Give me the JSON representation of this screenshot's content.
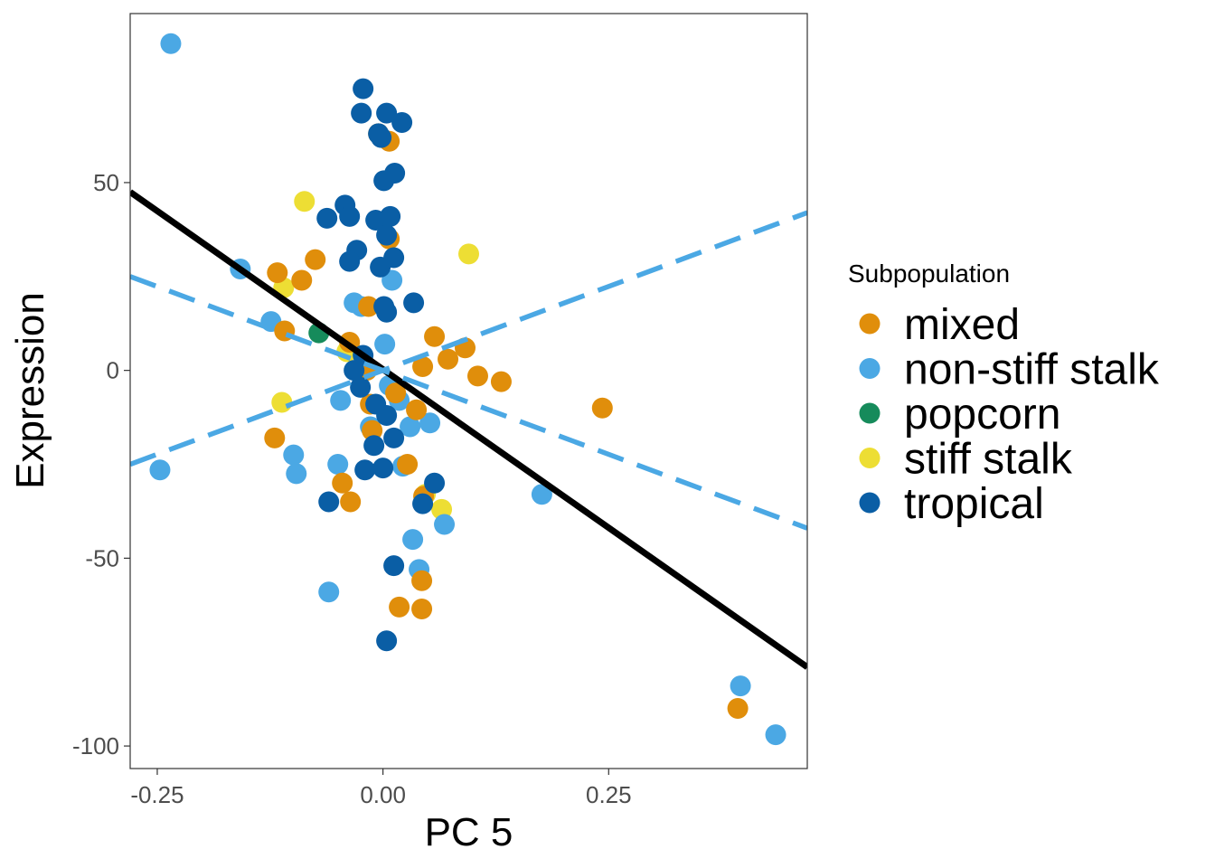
{
  "chart_data": {
    "type": "scatter",
    "xlabel": "PC 5",
    "ylabel": "Expression",
    "xlim": [
      -0.28,
      0.47
    ],
    "ylim": [
      -106,
      95
    ],
    "x_ticks": [
      -0.25,
      0.0,
      0.25
    ],
    "x_tick_labels": [
      "-0.25",
      "0.00",
      "0.25"
    ],
    "y_ticks": [
      -100,
      -50,
      0,
      50
    ],
    "y_tick_labels": [
      "-100",
      "-50",
      "0",
      "50"
    ],
    "grid": false,
    "legend": {
      "title": "Subpopulation",
      "position": "right",
      "entries": [
        "mixed",
        "non-stiff stalk",
        "popcorn",
        "stiff stalk",
        "tropical"
      ]
    },
    "colors": {
      "mixed": "#E08E0B",
      "non-stiff stalk": "#4BA8E4",
      "popcorn": "#168B5B",
      "stiff stalk": "#EDDE34",
      "tropical": "#0A5EA5",
      "overall_fit": "#000000"
    },
    "fit_lines": [
      {
        "name": "overall",
        "style": "solid",
        "color": "#000000",
        "points": [
          [
            -0.28,
            47.5
          ],
          [
            0.47,
            -79
          ]
        ]
      },
      {
        "name": "non-stiff stalk (upper)",
        "style": "dashed",
        "color": "#4BA8E4",
        "points": [
          [
            -0.28,
            -25
          ],
          [
            0.47,
            42
          ]
        ]
      },
      {
        "name": "non-stiff stalk (lower)",
        "style": "dashed",
        "color": "#4BA8E4",
        "points": [
          [
            -0.28,
            25
          ],
          [
            0.47,
            -42
          ]
        ]
      }
    ],
    "series": [
      {
        "name": "stiff stalk",
        "points": [
          [
            -0.087,
            45
          ],
          [
            0.095,
            31
          ],
          [
            -0.11,
            22
          ],
          [
            -0.04,
            5
          ],
          [
            -0.112,
            -8.5
          ],
          [
            0.065,
            -37
          ],
          [
            0.047,
            -33
          ]
        ]
      },
      {
        "name": "non-stiff stalk",
        "points": [
          [
            -0.235,
            87
          ],
          [
            -0.247,
            -26.5
          ],
          [
            -0.158,
            27
          ],
          [
            -0.124,
            13
          ],
          [
            -0.099,
            -22.5
          ],
          [
            -0.096,
            -27.5
          ],
          [
            -0.06,
            -59
          ],
          [
            -0.047,
            -8
          ],
          [
            -0.05,
            -25
          ],
          [
            -0.032,
            18
          ],
          [
            -0.024,
            17
          ],
          [
            0.002,
            7
          ],
          [
            0.01,
            24
          ],
          [
            -0.014,
            -15
          ],
          [
            0.007,
            -4
          ],
          [
            0.018,
            -8
          ],
          [
            0.022,
            -25.5
          ],
          [
            0.03,
            -15
          ],
          [
            0.052,
            -14
          ],
          [
            0.033,
            -45
          ],
          [
            0.04,
            -53
          ],
          [
            0.068,
            -41
          ],
          [
            0.176,
            -33
          ],
          [
            0.396,
            -84
          ],
          [
            0.435,
            -97
          ]
        ]
      },
      {
        "name": "popcorn",
        "points": [
          [
            -0.071,
            10
          ]
        ]
      },
      {
        "name": "mixed",
        "points": [
          [
            -0.117,
            26
          ],
          [
            -0.09,
            24
          ],
          [
            -0.075,
            29.5
          ],
          [
            -0.109,
            10.5
          ],
          [
            -0.12,
            -18
          ],
          [
            -0.045,
            -30
          ],
          [
            -0.036,
            -35
          ],
          [
            -0.037,
            7.5
          ],
          [
            -0.018,
            0
          ],
          [
            -0.016,
            17
          ],
          [
            -0.014,
            -9
          ],
          [
            -0.012,
            -16
          ],
          [
            -0.005,
            63
          ],
          [
            0.007,
            61
          ],
          [
            0.007,
            35
          ],
          [
            0.014,
            -6
          ],
          [
            0.027,
            -25
          ],
          [
            0.037,
            -10.5
          ],
          [
            0.044,
            1
          ],
          [
            0.045,
            -33.5
          ],
          [
            0.043,
            -56
          ],
          [
            0.043,
            -63.5
          ],
          [
            0.018,
            -63
          ],
          [
            0.057,
            9
          ],
          [
            0.072,
            3
          ],
          [
            0.091,
            6
          ],
          [
            0.105,
            -1.5
          ],
          [
            0.131,
            -3
          ],
          [
            0.243,
            -10
          ],
          [
            0.393,
            -90
          ]
        ]
      },
      {
        "name": "tropical",
        "points": [
          [
            -0.022,
            75
          ],
          [
            -0.024,
            68.5
          ],
          [
            0.004,
            68.5
          ],
          [
            -0.005,
            63
          ],
          [
            0.021,
            66
          ],
          [
            -0.002,
            62
          ],
          [
            0.013,
            52.5
          ],
          [
            0.001,
            50.5
          ],
          [
            -0.062,
            40.5
          ],
          [
            -0.042,
            44
          ],
          [
            -0.037,
            41
          ],
          [
            -0.008,
            40
          ],
          [
            0.008,
            41
          ],
          [
            0.004,
            36
          ],
          [
            -0.029,
            32
          ],
          [
            -0.037,
            29
          ],
          [
            0.012,
            30
          ],
          [
            -0.003,
            27.5
          ],
          [
            0.001,
            17
          ],
          [
            0.004,
            15.5
          ],
          [
            0.034,
            18
          ],
          [
            -0.022,
            4
          ],
          [
            -0.032,
            0
          ],
          [
            -0.025,
            -4.5
          ],
          [
            -0.008,
            -9
          ],
          [
            0.004,
            -12
          ],
          [
            -0.01,
            -20
          ],
          [
            0.012,
            -18
          ],
          [
            0.0,
            -26
          ],
          [
            -0.02,
            -26.5
          ],
          [
            0.057,
            -30
          ],
          [
            -0.06,
            -35
          ],
          [
            0.044,
            -35.5
          ],
          [
            0.012,
            -52
          ],
          [
            0.004,
            -72
          ]
        ]
      }
    ]
  }
}
